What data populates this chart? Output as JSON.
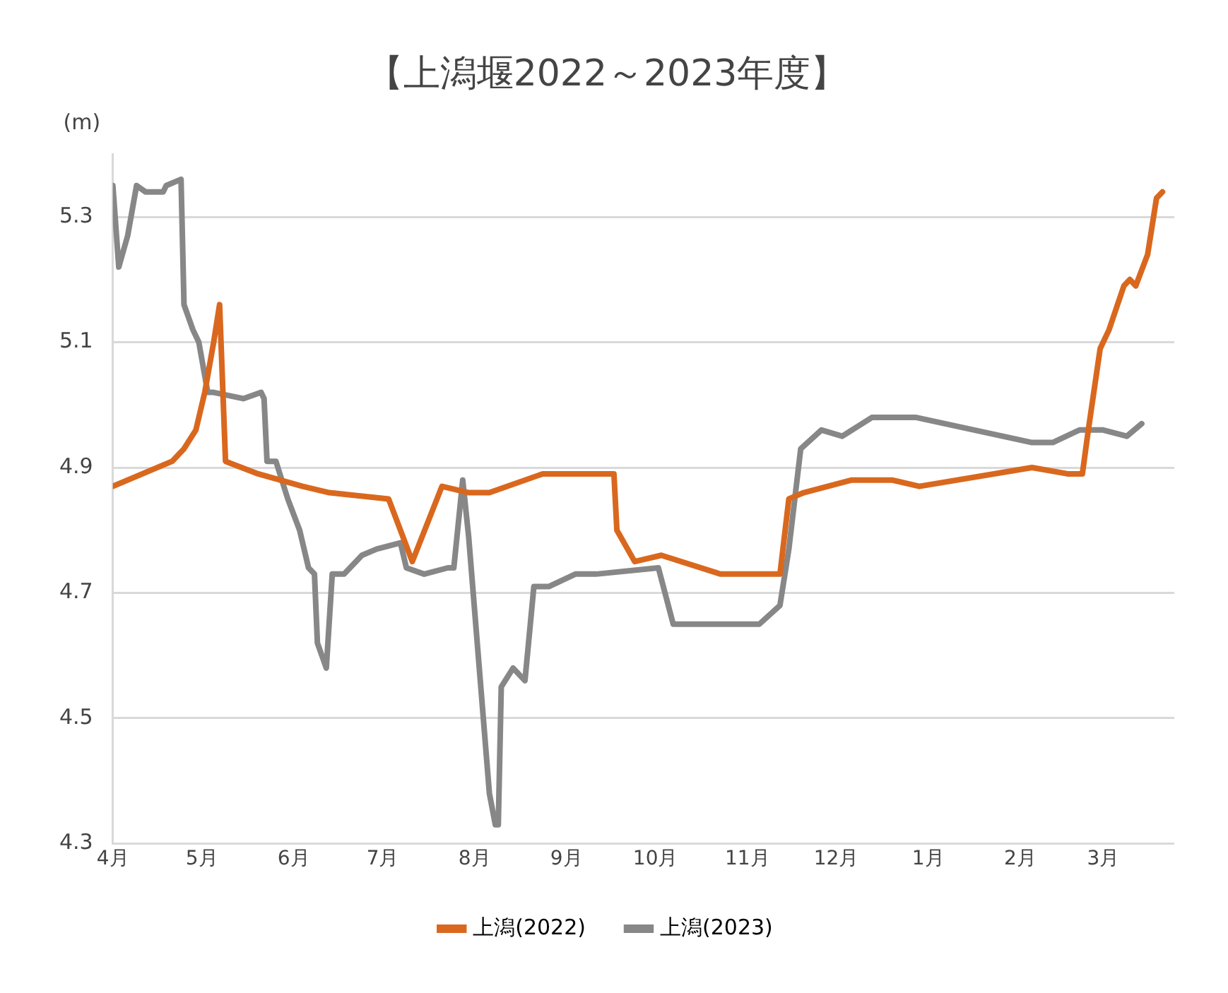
{
  "chart_data": {
    "type": "line",
    "title": "【上潟堰2022～2023年度】",
    "ylabel": "(m)",
    "xlim": [
      "2022-04-01",
      "2023-03-25"
    ],
    "xticks": [
      {
        "value": "2022-04-01",
        "label": "4月"
      },
      {
        "value": "2022-05-01",
        "label": "5月"
      },
      {
        "value": "2022-06-01",
        "label": "6月"
      },
      {
        "value": "2022-07-01",
        "label": "7月"
      },
      {
        "value": "2022-08-01",
        "label": "8月"
      },
      {
        "value": "2022-09-01",
        "label": "9月"
      },
      {
        "value": "2022-10-01",
        "label": "10月"
      },
      {
        "value": "2022-11-01",
        "label": "11月"
      },
      {
        "value": "2022-12-01",
        "label": "12月"
      },
      {
        "value": "2023-01-01",
        "label": "1月"
      },
      {
        "value": "2023-02-01",
        "label": "2月"
      },
      {
        "value": "2023-03-01",
        "label": "3月"
      }
    ],
    "ylim": [
      4.3,
      5.4
    ],
    "yticks": [
      4.3,
      4.5,
      4.7,
      4.9,
      5.1,
      5.3
    ],
    "grid": "y",
    "legend": "bottom",
    "marker": "none",
    "line_style": "solid",
    "series": [
      {
        "name": "上潟(2022)",
        "color": "#d9681e",
        "x": [
          "2022-04-01",
          "2022-04-21",
          "2022-04-25",
          "2022-04-29",
          "2022-05-02",
          "2022-05-05",
          "2022-05-07",
          "2022-05-09",
          "2022-05-20",
          "2022-06-04",
          "2022-06-13",
          "2022-07-03",
          "2022-07-11",
          "2022-07-21",
          "2022-07-30",
          "2022-08-06",
          "2022-08-24",
          "2022-09-17",
          "2022-09-18",
          "2022-09-24",
          "2022-10-03",
          "2022-10-23",
          "2022-11-12",
          "2022-11-15",
          "2022-11-20",
          "2022-12-06",
          "2022-12-20",
          "2022-12-29",
          "2023-02-05",
          "2023-02-17",
          "2023-02-22",
          "2023-02-24",
          "2023-02-28",
          "2023-03-03",
          "2023-03-08",
          "2023-03-10",
          "2023-03-12",
          "2023-03-16",
          "2023-03-19",
          "2023-03-21"
        ],
        "values": [
          4.87,
          4.91,
          4.93,
          4.96,
          5.02,
          5.1,
          5.16,
          4.91,
          4.89,
          4.87,
          4.86,
          4.85,
          4.75,
          4.87,
          4.86,
          4.86,
          4.89,
          4.89,
          4.8,
          4.75,
          4.76,
          4.73,
          4.73,
          4.85,
          4.86,
          4.88,
          4.88,
          4.87,
          4.9,
          4.89,
          4.89,
          4.96,
          5.09,
          5.12,
          5.19,
          5.2,
          5.19,
          5.24,
          5.33,
          5.34
        ]
      },
      {
        "name": "上潟(2023)",
        "color": "#878787",
        "x": [
          "2022-04-01",
          "2022-04-03",
          "2022-04-06",
          "2022-04-09",
          "2022-04-12",
          "2022-04-18",
          "2022-04-19",
          "2022-04-24",
          "2022-04-25",
          "2022-04-28",
          "2022-04-30",
          "2022-05-03",
          "2022-05-05",
          "2022-05-15",
          "2022-05-21",
          "2022-05-22",
          "2022-05-23",
          "2022-05-26",
          "2022-05-30",
          "2022-06-03",
          "2022-06-06",
          "2022-06-08",
          "2022-06-09",
          "2022-06-12",
          "2022-06-14",
          "2022-06-18",
          "2022-06-24",
          "2022-06-29",
          "2022-07-07",
          "2022-07-09",
          "2022-07-15",
          "2022-07-23",
          "2022-07-25",
          "2022-07-28",
          "2022-07-30",
          "2022-08-06",
          "2022-08-08",
          "2022-08-09",
          "2022-08-10",
          "2022-08-14",
          "2022-08-18",
          "2022-08-21",
          "2022-08-26",
          "2022-09-04",
          "2022-09-11",
          "2022-10-02",
          "2022-10-07",
          "2022-11-05",
          "2022-11-12",
          "2022-11-15",
          "2022-11-19",
          "2022-11-26",
          "2022-12-03",
          "2022-12-13",
          "2022-12-28",
          "2023-02-05",
          "2023-02-12",
          "2023-02-21",
          "2023-03-01",
          "2023-03-09",
          "2023-03-14"
        ],
        "values": [
          5.35,
          5.22,
          5.27,
          5.35,
          5.34,
          5.34,
          5.35,
          5.36,
          5.16,
          5.12,
          5.1,
          5.02,
          5.02,
          5.01,
          5.02,
          5.01,
          4.91,
          4.91,
          4.85,
          4.8,
          4.74,
          4.73,
          4.62,
          4.58,
          4.73,
          4.73,
          4.76,
          4.77,
          4.78,
          4.74,
          4.73,
          4.74,
          4.74,
          4.88,
          4.79,
          4.38,
          4.33,
          4.33,
          4.55,
          4.58,
          4.56,
          4.71,
          4.71,
          4.73,
          4.73,
          4.74,
          4.65,
          4.65,
          4.68,
          4.77,
          4.93,
          4.96,
          4.95,
          4.98,
          4.98,
          4.94,
          4.94,
          4.96,
          4.96,
          4.95,
          4.97
        ]
      }
    ]
  }
}
